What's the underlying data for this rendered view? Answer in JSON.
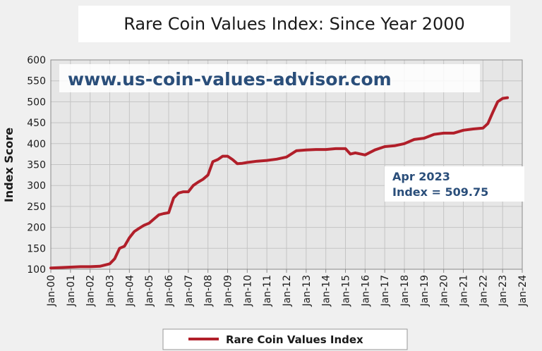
{
  "chart_data": {
    "type": "line",
    "title": "Rare Coin Values Index: Since Year 2000",
    "ylabel": "Index Score",
    "xlabel": "",
    "ylim": [
      100,
      600
    ],
    "yticks": [
      "600",
      "550",
      "500",
      "450",
      "400",
      "350",
      "300",
      "250",
      "200",
      "150",
      "100"
    ],
    "xticks": [
      "Jan-00",
      "Jan-01",
      "Jan-02",
      "Jan-03",
      "Jan-04",
      "Jan-05",
      "Jan-06",
      "Jan-07",
      "Jan-08",
      "Jan-09",
      "Jan-10",
      "Jan-11",
      "Jan-12",
      "Jan-13",
      "Jan-14",
      "Jan-15",
      "Jan-16",
      "Jan-17",
      "Jan-18",
      "Jan-19",
      "Jan-20",
      "Jan-21",
      "Jan-22",
      "Jan-23",
      "Jan-24"
    ],
    "grid": true,
    "legend_position": "bottom",
    "watermark": "www.us-coin-values-advisor.com",
    "annotation": {
      "line1": "Apr 2023",
      "line2": "Index = 509.75"
    },
    "line_color": "#b11f2a",
    "series": [
      {
        "name": "Rare Coin Values Index",
        "x": [
          "Jan-00",
          "Jul-00",
          "Jan-01",
          "Jul-01",
          "Jan-02",
          "Jul-02",
          "Jan-03",
          "Apr-03",
          "Jul-03",
          "Oct-03",
          "Jan-04",
          "Apr-04",
          "Jul-04",
          "Oct-04",
          "Jan-05",
          "Apr-05",
          "Jul-05",
          "Oct-05",
          "Jan-06",
          "Apr-06",
          "Jul-06",
          "Oct-06",
          "Jan-07",
          "Apr-07",
          "Jul-07",
          "Oct-07",
          "Jan-08",
          "Apr-08",
          "Jul-08",
          "Oct-08",
          "Jan-09",
          "Apr-09",
          "Jul-09",
          "Oct-09",
          "Jan-10",
          "Jul-10",
          "Jan-11",
          "Jul-11",
          "Jan-12",
          "Jul-12",
          "Jan-13",
          "Jul-13",
          "Jan-14",
          "Jul-14",
          "Jan-15",
          "Apr-15",
          "Jul-15",
          "Jan-16",
          "Jul-16",
          "Jan-17",
          "Jul-17",
          "Jan-18",
          "Jul-18",
          "Jan-19",
          "Jul-19",
          "Jan-20",
          "Jul-20",
          "Jan-21",
          "Jul-21",
          "Jan-22",
          "Apr-22",
          "Jul-22",
          "Oct-22",
          "Jan-23",
          "Apr-23"
        ],
        "values": [
          103,
          104,
          105,
          106,
          106,
          107,
          113,
          125,
          150,
          155,
          175,
          190,
          198,
          205,
          210,
          220,
          230,
          233,
          235,
          270,
          282,
          285,
          285,
          300,
          308,
          315,
          325,
          357,
          362,
          370,
          370,
          362,
          352,
          353,
          355,
          358,
          360,
          363,
          368,
          383,
          385,
          386,
          386,
          388,
          388,
          375,
          378,
          373,
          385,
          393,
          395,
          400,
          410,
          413,
          422,
          425,
          425,
          432,
          435,
          437,
          448,
          475,
          500,
          508,
          509.75
        ]
      }
    ]
  }
}
